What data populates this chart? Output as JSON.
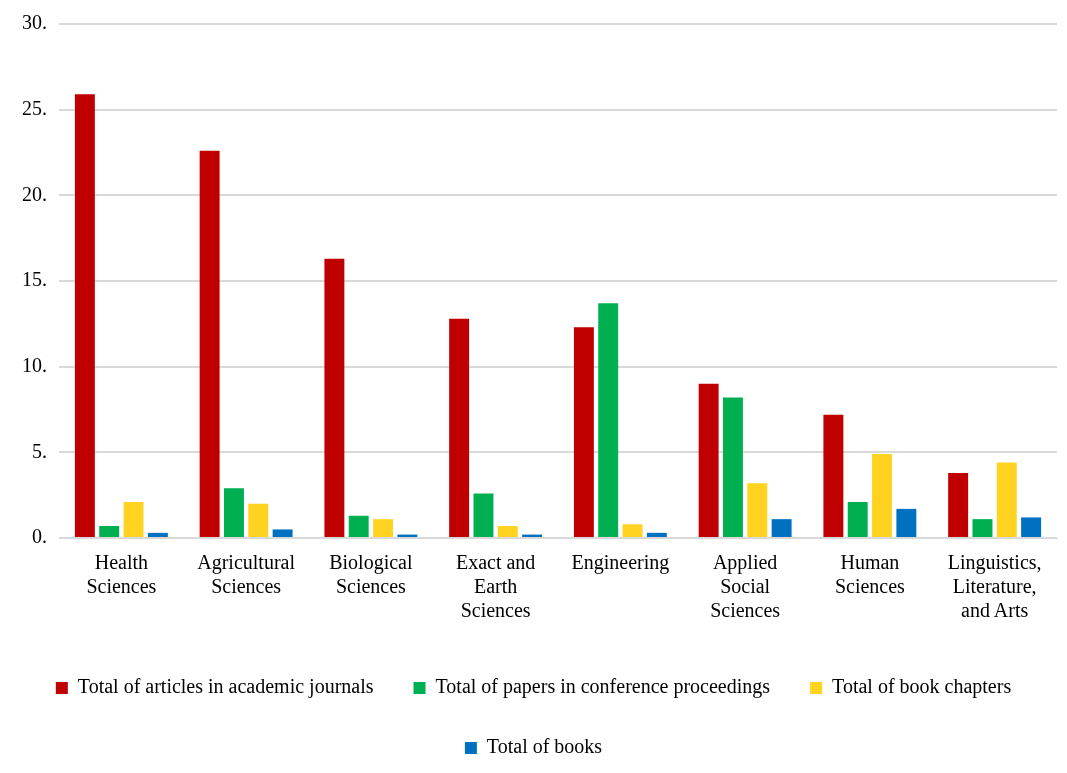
{
  "chart_data": {
    "type": "bar",
    "categories": [
      "Health Sciences",
      "Agricultural Sciences",
      "Biological Sciences",
      "Exact and Earth Sciences",
      "Engineering",
      "Applied Social Sciences",
      "Human Sciences",
      "Linguistics, Literature, and Arts"
    ],
    "series": [
      {
        "name": "Total of articles in academic journals",
        "color": "#c00000",
        "values": [
          25.9,
          22.6,
          16.3,
          12.8,
          12.3,
          9.0,
          7.2,
          3.8
        ]
      },
      {
        "name": "Total of papers in conference proceedings",
        "color": "#00b050",
        "values": [
          0.7,
          2.9,
          1.3,
          2.6,
          13.7,
          8.2,
          2.1,
          1.1
        ]
      },
      {
        "name": "Total of book chapters",
        "color": "#ffd320",
        "values": [
          2.1,
          2.0,
          1.1,
          0.7,
          0.8,
          3.2,
          4.9,
          4.4
        ]
      },
      {
        "name": "Total of books",
        "color": "#0070c0",
        "values": [
          0.3,
          0.5,
          0.2,
          0.2,
          0.3,
          1.1,
          1.7,
          1.2
        ]
      }
    ],
    "ylim": [
      0,
      30
    ],
    "yticks": [
      {
        "value": 0,
        "label": "0."
      },
      {
        "value": 5,
        "label": "5."
      },
      {
        "value": 10,
        "label": "10."
      },
      {
        "value": 15,
        "label": "15."
      },
      {
        "value": 20,
        "label": "20."
      },
      {
        "value": 25,
        "label": "25."
      },
      {
        "value": 30,
        "label": "30."
      }
    ],
    "grid": "y",
    "legend": "bottom"
  }
}
